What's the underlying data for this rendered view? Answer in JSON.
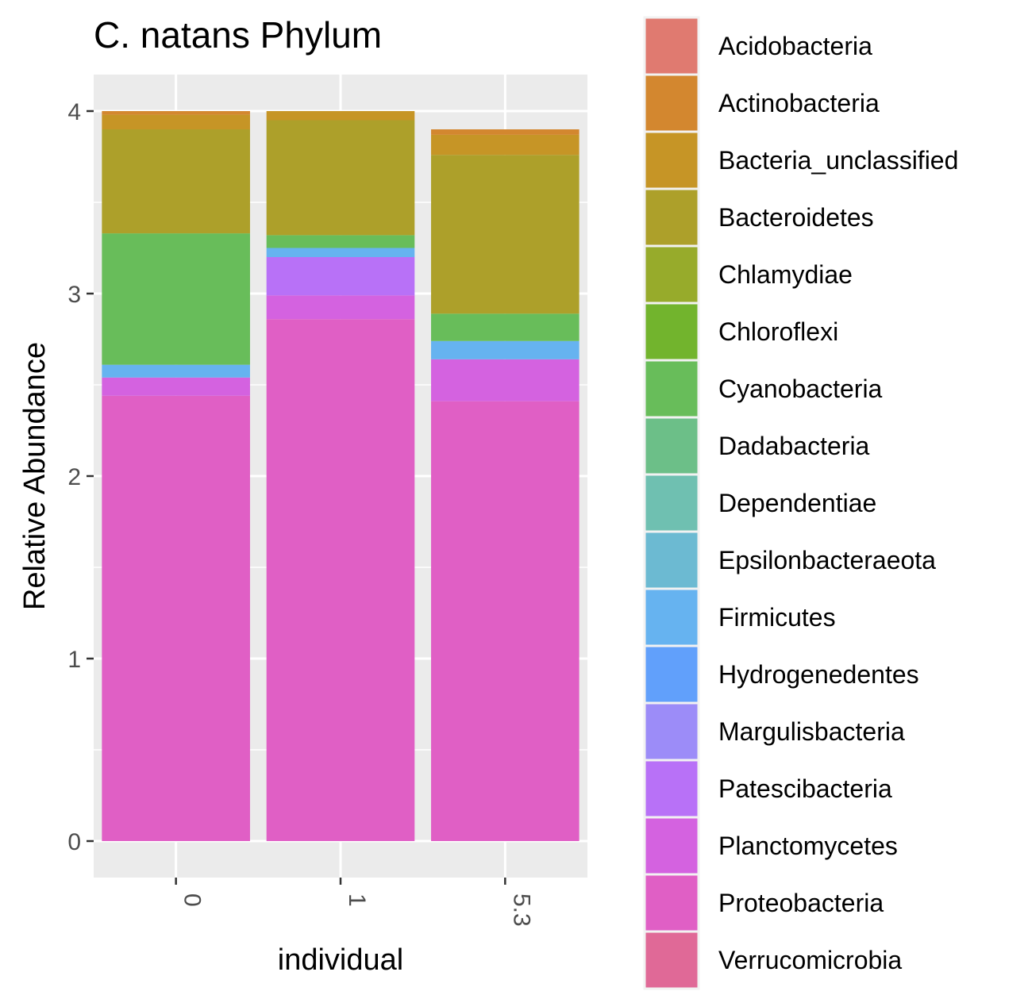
{
  "chart_data": {
    "type": "bar",
    "stacked": true,
    "title": "C. natans Phylum",
    "xlabel": "individual",
    "ylabel": "Relative Abundance",
    "categories": [
      "0",
      "1",
      "5.3"
    ],
    "ylim": [
      -0.2,
      4.2
    ],
    "yticks": [
      0,
      1,
      2,
      3,
      4
    ],
    "grid": true,
    "legend_position": "right",
    "series": [
      {
        "name": "Proteobacteria",
        "color": "#E05FC5",
        "values": [
          2.44,
          2.86,
          2.41
        ]
      },
      {
        "name": "Planctomycetes",
        "color": "#D462E0",
        "values": [
          0.1,
          0.13,
          0.23
        ]
      },
      {
        "name": "Patescibacteria",
        "color": "#B871F7",
        "values": [
          0.0,
          0.21,
          0.0
        ]
      },
      {
        "name": "Firmicutes",
        "color": "#66B3F0",
        "values": [
          0.07,
          0.05,
          0.1
        ]
      },
      {
        "name": "Cyanobacteria",
        "color": "#68BD5A",
        "values": [
          0.72,
          0.07,
          0.15
        ]
      },
      {
        "name": "Bacteroidetes",
        "color": "#ADA02A",
        "values": [
          0.57,
          0.63,
          0.87
        ]
      },
      {
        "name": "Bacteria_unclassified",
        "color": "#C69526",
        "values": [
          0.08,
          0.05,
          0.11
        ]
      },
      {
        "name": "Actinobacteria",
        "color": "#D3872F",
        "values": [
          0.02,
          0.0,
          0.03
        ]
      }
    ],
    "legend": [
      {
        "name": "Acidobacteria",
        "color": "#E07A70"
      },
      {
        "name": "Actinobacteria",
        "color": "#D3872F"
      },
      {
        "name": "Bacteria_unclassified",
        "color": "#C69526"
      },
      {
        "name": "Bacteroidetes",
        "color": "#ADA02A"
      },
      {
        "name": "Chlamydiae",
        "color": "#97AB2B"
      },
      {
        "name": "Chloroflexi",
        "color": "#72B42D"
      },
      {
        "name": "Cyanobacteria",
        "color": "#68BD5A"
      },
      {
        "name": "Dadabacteria",
        "color": "#6CBF88"
      },
      {
        "name": "Dependentiae",
        "color": "#6FC0B1"
      },
      {
        "name": "Epsilonbacteraeota",
        "color": "#6CBAD2"
      },
      {
        "name": "Firmicutes",
        "color": "#66B3F0"
      },
      {
        "name": "Hydrogenedentes",
        "color": "#61A0FB"
      },
      {
        "name": "Margulisbacteria",
        "color": "#9C8CF8"
      },
      {
        "name": "Patescibacteria",
        "color": "#B871F7"
      },
      {
        "name": "Planctomycetes",
        "color": "#D462E0"
      },
      {
        "name": "Proteobacteria",
        "color": "#E05FC5"
      },
      {
        "name": "Verrucomicrobia",
        "color": "#E06997"
      }
    ]
  }
}
